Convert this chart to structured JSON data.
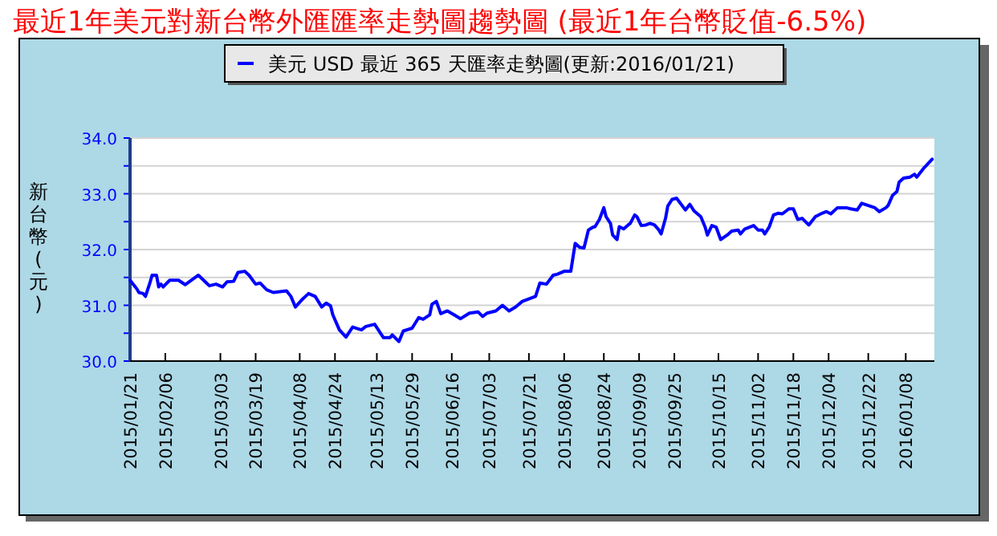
{
  "chart_data": {
    "type": "line",
    "title": "最近1年美元對新台幣外匯匯率走勢圖趨勢圖 (最近1年台幣貶值-6.5%)",
    "ylabel": "新台幣(元)",
    "legend": "top",
    "grid": "y",
    "marker": "none",
    "line_style": "solid",
    "xlim": [
      "2015-01-21",
      "2016-01-21"
    ],
    "xticks": [
      {
        "value": "2015-01-21",
        "label": "2015/01/21"
      },
      {
        "value": "2015-02-06",
        "label": "2015/02/06"
      },
      {
        "value": "2015-03-03",
        "label": "2015/03/03"
      },
      {
        "value": "2015-03-19",
        "label": "2015/03/19"
      },
      {
        "value": "2015-04-08",
        "label": "2015/04/08"
      },
      {
        "value": "2015-04-24",
        "label": "2015/04/24"
      },
      {
        "value": "2015-05-13",
        "label": "2015/05/13"
      },
      {
        "value": "2015-05-29",
        "label": "2015/05/29"
      },
      {
        "value": "2015-06-16",
        "label": "2015/06/16"
      },
      {
        "value": "2015-07-03",
        "label": "2015/07/03"
      },
      {
        "value": "2015-07-21",
        "label": "2015/07/21"
      },
      {
        "value": "2015-08-06",
        "label": "2015/08/06"
      },
      {
        "value": "2015-08-24",
        "label": "2015/08/24"
      },
      {
        "value": "2015-09-09",
        "label": "2015/09/09"
      },
      {
        "value": "2015-09-25",
        "label": "2015/09/25"
      },
      {
        "value": "2015-10-15",
        "label": "2015/10/15"
      },
      {
        "value": "2015-11-02",
        "label": "2015/11/02"
      },
      {
        "value": "2015-11-18",
        "label": "2015/11/18"
      },
      {
        "value": "2015-12-04",
        "label": "2015/12/04"
      },
      {
        "value": "2015-12-22",
        "label": "2015/12/22"
      },
      {
        "value": "2016-01-08",
        "label": "2016/01/08"
      }
    ],
    "ylim": [
      30,
      34
    ],
    "yticks": [
      {
        "value": 30,
        "label": "30.0"
      },
      {
        "value": 30.5,
        "label": null
      },
      {
        "value": 31,
        "label": "31.0"
      },
      {
        "value": 31.5,
        "label": null
      },
      {
        "value": 32,
        "label": "32.0"
      },
      {
        "value": 32.5,
        "label": null
      },
      {
        "value": 33,
        "label": "33.0"
      },
      {
        "value": 33.5,
        "label": null
      },
      {
        "value": 34,
        "label": "34.0"
      }
    ],
    "series": [
      {
        "name": "美元 USD 最近 365 天匯率走勢圖(更新:2016/01/21)",
        "color": "#0000ff",
        "x": [
          "2015-01-21",
          "2015-01-24",
          "2015-01-25",
          "2015-01-27",
          "2015-01-28",
          "2015-01-30",
          "2015-01-31",
          "2015-02-02",
          "2015-02-03",
          "2015-02-04",
          "2015-02-05",
          "2015-02-08",
          "2015-02-12",
          "2015-02-15",
          "2015-02-21",
          "2015-02-26",
          "2015-03-01",
          "2015-03-04",
          "2015-03-06",
          "2015-03-09",
          "2015-03-11",
          "2015-03-14",
          "2015-03-16",
          "2015-03-19",
          "2015-03-21",
          "2015-03-24",
          "2015-03-27",
          "2015-04-02",
          "2015-04-04",
          "2015-04-06",
          "2015-04-09",
          "2015-04-12",
          "2015-04-15",
          "2015-04-18",
          "2015-04-20",
          "2015-04-22",
          "2015-04-23",
          "2015-04-26",
          "2015-04-29",
          "2015-05-02",
          "2015-05-06",
          "2015-05-08",
          "2015-05-12",
          "2015-05-16",
          "2015-05-19",
          "2015-05-20",
          "2015-05-23",
          "2015-05-25",
          "2015-05-29",
          "2015-06-01",
          "2015-06-03",
          "2015-06-06",
          "2015-06-07",
          "2015-06-09",
          "2015-06-11",
          "2015-06-14",
          "2015-06-17",
          "2015-06-20",
          "2015-06-24",
          "2015-06-28",
          "2015-06-30",
          "2015-07-02",
          "2015-07-06",
          "2015-07-09",
          "2015-07-12",
          "2015-07-15",
          "2015-07-18",
          "2015-07-24",
          "2015-07-26",
          "2015-07-29",
          "2015-08-01",
          "2015-08-03",
          "2015-08-06",
          "2015-08-09",
          "2015-08-11",
          "2015-08-13",
          "2015-08-15",
          "2015-08-17",
          "2015-08-19",
          "2015-08-20",
          "2015-08-22",
          "2015-08-24",
          "2015-08-25",
          "2015-08-27",
          "2015-08-28",
          "2015-08-30",
          "2015-08-31",
          "2015-09-02",
          "2015-09-04",
          "2015-09-05",
          "2015-09-07",
          "2015-09-08",
          "2015-09-10",
          "2015-09-12",
          "2015-09-14",
          "2015-09-16",
          "2015-09-18",
          "2015-09-19",
          "2015-09-21",
          "2015-09-22",
          "2015-09-24",
          "2015-09-26",
          "2015-09-30",
          "2015-10-02",
          "2015-10-04",
          "2015-10-07",
          "2015-10-09",
          "2015-10-10",
          "2015-10-12",
          "2015-10-14",
          "2015-10-16",
          "2015-10-19",
          "2015-10-21",
          "2015-10-24",
          "2015-10-25",
          "2015-10-27",
          "2015-10-31",
          "2015-11-02",
          "2015-11-04",
          "2015-11-05",
          "2015-11-07",
          "2015-11-09",
          "2015-11-11",
          "2015-11-13",
          "2015-11-16",
          "2015-11-18",
          "2015-11-20",
          "2015-11-22",
          "2015-11-25",
          "2015-11-28",
          "2015-12-01",
          "2015-12-03",
          "2015-12-05",
          "2015-12-08",
          "2015-12-12",
          "2015-12-14",
          "2015-12-17",
          "2015-12-19",
          "2015-12-22",
          "2015-12-25",
          "2015-12-27",
          "2015-12-30",
          "2015-12-31",
          "2016-01-02",
          "2016-01-04",
          "2016-01-05",
          "2016-01-07",
          "2016-01-10",
          "2016-01-12",
          "2016-01-13",
          "2016-01-16",
          "2016-01-20"
        ],
        "values": [
          31.45,
          31.3,
          31.23,
          31.21,
          31.16,
          31.4,
          31.54,
          31.54,
          31.33,
          31.38,
          31.33,
          31.45,
          31.45,
          31.37,
          31.54,
          31.35,
          31.38,
          31.33,
          31.42,
          31.43,
          31.59,
          31.61,
          31.54,
          31.38,
          31.4,
          31.28,
          31.23,
          31.26,
          31.16,
          30.97,
          31.1,
          31.21,
          31.16,
          30.97,
          31.04,
          30.99,
          30.83,
          30.56,
          30.43,
          30.61,
          30.56,
          30.62,
          30.66,
          30.42,
          30.42,
          30.47,
          30.35,
          30.54,
          30.59,
          30.78,
          30.75,
          30.83,
          31.02,
          31.07,
          30.85,
          30.9,
          30.83,
          30.76,
          30.86,
          30.88,
          30.8,
          30.86,
          30.9,
          31.0,
          30.9,
          30.97,
          31.07,
          31.16,
          31.4,
          31.38,
          31.54,
          31.56,
          31.61,
          31.61,
          32.11,
          32.04,
          32.03,
          32.35,
          32.4,
          32.41,
          32.54,
          32.75,
          32.59,
          32.47,
          32.26,
          32.18,
          32.41,
          32.37,
          32.44,
          32.47,
          32.62,
          32.59,
          32.43,
          32.44,
          32.47,
          32.44,
          32.35,
          32.28,
          32.56,
          32.78,
          32.9,
          32.92,
          32.71,
          32.81,
          32.69,
          32.59,
          32.4,
          32.26,
          32.43,
          32.4,
          32.18,
          32.26,
          32.33,
          32.35,
          32.28,
          32.37,
          32.43,
          32.35,
          32.35,
          32.28,
          32.4,
          32.62,
          32.65,
          32.64,
          32.73,
          32.73,
          32.54,
          32.56,
          32.44,
          32.59,
          32.65,
          32.68,
          32.64,
          32.75,
          32.75,
          32.73,
          32.71,
          32.83,
          32.79,
          32.75,
          32.68,
          32.75,
          32.79,
          32.97,
          33.04,
          33.21,
          33.28,
          33.3,
          33.35,
          33.3,
          33.45,
          33.62
        ]
      }
    ]
  }
}
